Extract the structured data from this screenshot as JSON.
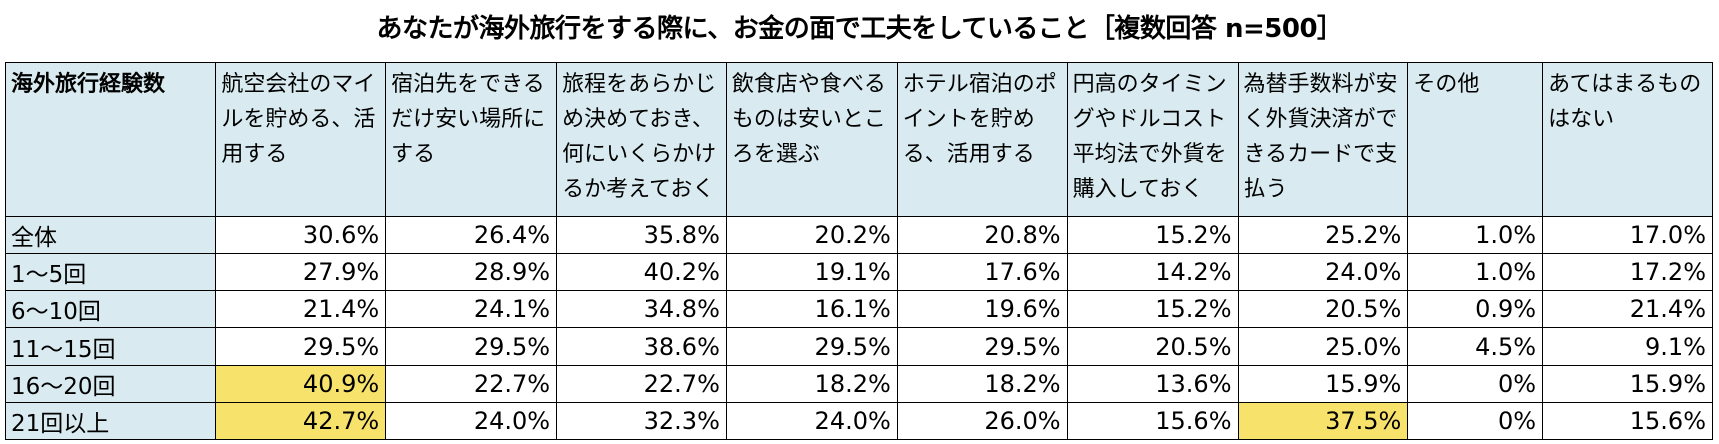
{
  "chart_data": {
    "type": "table",
    "title": "あなたが海外旅行をする際に、お金の面で工夫をしていること［複数回答 n=500］",
    "corner_label": "海外旅行経験数",
    "columns": [
      "航空会社のマイルを貯める、活用する",
      "宿泊先をできるだけ安い場所にする",
      "旅程をあらかじめ決めておき、何にいくらかけるか考えておく",
      "飲食店や食べるものは安いところを選ぶ",
      "ホテル宿泊のポイントを貯める、活用する",
      "円高のタイミングやドルコスト平均法で外貨を購入しておく",
      "為替手数料が安く外貨決済ができるカードで支払う",
      "その他",
      "あてはまるものはない"
    ],
    "rows": [
      {
        "label": "全体",
        "values": [
          "30.6%",
          "26.4%",
          "35.8%",
          "20.2%",
          "20.8%",
          "15.2%",
          "25.2%",
          "1.0%",
          "17.0%"
        ]
      },
      {
        "label": "1～5回",
        "values": [
          "27.9%",
          "28.9%",
          "40.2%",
          "19.1%",
          "17.6%",
          "14.2%",
          "24.0%",
          "1.0%",
          "17.2%"
        ]
      },
      {
        "label": "6～10回",
        "values": [
          "21.4%",
          "24.1%",
          "34.8%",
          "16.1%",
          "19.6%",
          "15.2%",
          "20.5%",
          "0.9%",
          "21.4%"
        ]
      },
      {
        "label": "11～15回",
        "values": [
          "29.5%",
          "29.5%",
          "38.6%",
          "29.5%",
          "29.5%",
          "20.5%",
          "25.0%",
          "4.5%",
          "9.1%"
        ]
      },
      {
        "label": "16～20回",
        "values": [
          "40.9%",
          "22.7%",
          "22.7%",
          "18.2%",
          "18.2%",
          "13.6%",
          "15.9%",
          "0%",
          "15.9%"
        ]
      },
      {
        "label": "21回以上",
        "values": [
          "42.7%",
          "24.0%",
          "32.3%",
          "24.0%",
          "26.0%",
          "15.6%",
          "37.5%",
          "0%",
          "15.6%"
        ]
      }
    ],
    "highlight_cells": [
      [
        4,
        0
      ],
      [
        5,
        0
      ],
      [
        5,
        6
      ]
    ],
    "colors": {
      "header_bg": "#d9ebf0",
      "highlight": "#f7e26b",
      "border": "#000000"
    }
  }
}
